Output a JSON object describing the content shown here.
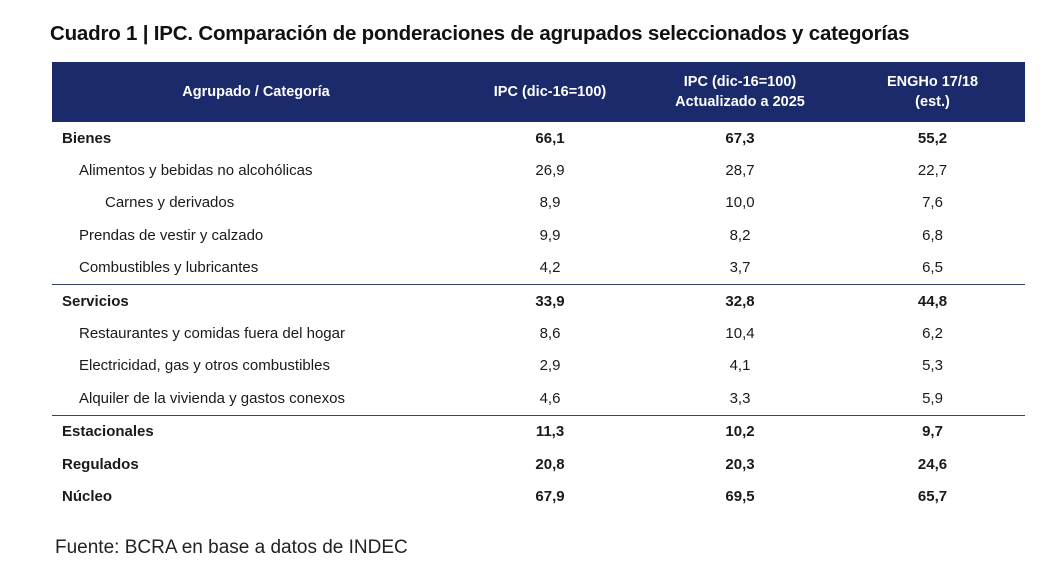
{
  "title": "Cuadro 1 | IPC. Comparación de ponderaciones de agrupados seleccionados y categorías",
  "header_color": "#1b2a6b",
  "table": {
    "headers": [
      "Agrupado / Categoría",
      "IPC (dic-16=100)",
      "IPC (dic-16=100)\nActualizado a 2025",
      "ENGHo 17/18\n(est.)"
    ],
    "header_lines": {
      "col3_line1": "IPC (dic-16=100)",
      "col3_line2": "Actualizado a 2025",
      "col4_line1": "ENGHo 17/18",
      "col4_line2": "(est.)"
    },
    "rows": [
      {
        "label": "Bienes",
        "level": 0,
        "bold": true,
        "values": [
          "66,1",
          "67,3",
          "55,2"
        ]
      },
      {
        "label": "Alimentos y bebidas no alcohólicas",
        "level": 1,
        "bold": false,
        "values": [
          "26,9",
          "28,7",
          "22,7"
        ]
      },
      {
        "label": "Carnes y derivados",
        "level": 2,
        "bold": false,
        "values": [
          "8,9",
          "10,0",
          "7,6"
        ]
      },
      {
        "label": "Prendas de vestir y calzado",
        "level": 1,
        "bold": false,
        "values": [
          "9,9",
          "8,2",
          "6,8"
        ]
      },
      {
        "label": "Combustibles y lubricantes",
        "level": 1,
        "bold": false,
        "values": [
          "4,2",
          "3,7",
          "6,5"
        ]
      },
      {
        "label": "Servicios",
        "level": 0,
        "bold": true,
        "values": [
          "33,9",
          "32,8",
          "44,8"
        ]
      },
      {
        "label": "Restaurantes y comidas fuera del hogar",
        "level": 1,
        "bold": false,
        "values": [
          "8,6",
          "10,4",
          "6,2"
        ]
      },
      {
        "label": "Electricidad, gas y otros combustibles",
        "level": 1,
        "bold": false,
        "values": [
          "2,9",
          "4,1",
          "5,3"
        ]
      },
      {
        "label": "Alquiler de la vivienda y gastos conexos",
        "level": 1,
        "bold": false,
        "values": [
          "4,6",
          "3,3",
          "5,9"
        ]
      },
      {
        "label": "Estacionales",
        "level": 0,
        "bold": true,
        "values": [
          "11,3",
          "10,2",
          "9,7"
        ]
      },
      {
        "label": "Regulados",
        "level": 0,
        "bold": true,
        "values": [
          "20,8",
          "20,3",
          "24,6"
        ]
      },
      {
        "label": "Núcleo",
        "level": 0,
        "bold": true,
        "values": [
          "67,9",
          "69,5",
          "65,7"
        ]
      }
    ]
  },
  "source": "Fuente: BCRA en base a datos de INDEC"
}
